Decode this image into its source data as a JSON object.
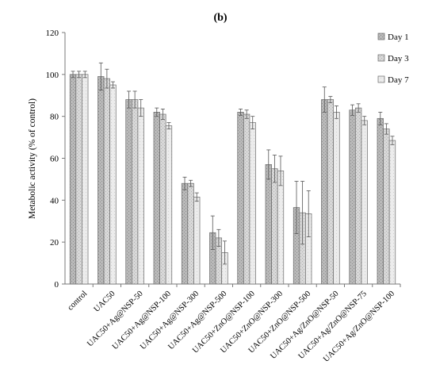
{
  "chart_data": {
    "type": "bar",
    "title": "(b)",
    "ylabel": "Metabolic activity (% of control)",
    "xlabel": "",
    "ylim": [
      0,
      120
    ],
    "yticks": [
      0,
      20,
      40,
      60,
      80,
      100,
      120
    ],
    "grid": false,
    "legend_position": "top-right",
    "categories": [
      "control",
      "UAC50",
      "UAC50+Ag@NSP-50",
      "UAC50+Ag@NSP-100",
      "UAC50+Ag@NSP-300",
      "UAC50+Ag@NSP-500",
      "UAC50+ZnO@NSP-100",
      "UAC50+ZnO@NSP-300",
      "UAC50+ZnO@NSP-500",
      "UAC50+Ag/ZnO@NSP-50",
      "UAC50+Ag/ZnO@NSP-75",
      "UAC50+Ag/ZnO@NSP-100"
    ],
    "series": [
      {
        "name": "Day 1",
        "color": "#b8b8b8",
        "values": [
          100,
          99,
          88,
          82,
          48,
          24.5,
          82,
          57,
          36.5,
          88,
          83,
          79
        ],
        "errors": [
          1.5,
          6.5,
          4,
          2,
          3,
          8,
          1.5,
          7,
          12.5,
          6,
          2.5,
          3
        ]
      },
      {
        "name": "Day 3",
        "color": "#d6d6d6",
        "values": [
          100,
          98,
          88,
          81,
          48,
          22,
          81,
          55,
          34,
          88,
          84,
          74
        ],
        "errors": [
          1.5,
          4.5,
          4,
          2.5,
          1.5,
          4,
          2,
          6.5,
          15,
          1.5,
          2,
          2.5
        ]
      },
      {
        "name": "Day 7",
        "color": "#ebebeb",
        "values": [
          100,
          95,
          84,
          75.5,
          41.5,
          15,
          77,
          54,
          33.5,
          82,
          78,
          68.5
        ],
        "errors": [
          1.5,
          1.5,
          4,
          1.5,
          2,
          5.5,
          3,
          7,
          11,
          3,
          2,
          2
        ]
      }
    ]
  }
}
